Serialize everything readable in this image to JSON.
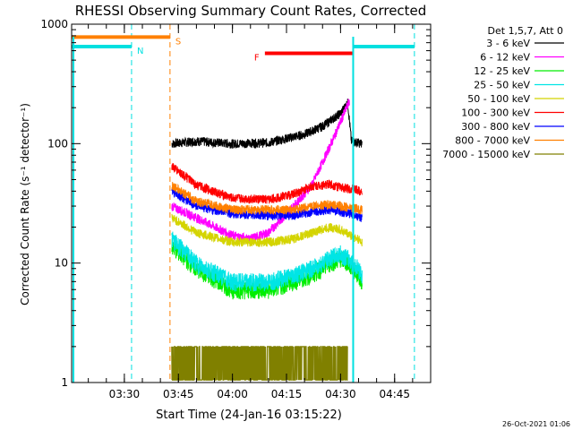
{
  "chart_data": {
    "type": "line",
    "title": "RHESSI Observing Summary Count Rates, Corrected",
    "xlabel": "Start Time (24-Jan-16 03:15:22)",
    "ylabel": "Corrected Count Rate (s⁻¹ detector⁻¹)",
    "yscale": "log",
    "ylim": [
      1,
      1000
    ],
    "xlim": [
      "03:15:22",
      "04:55:00"
    ],
    "x_ticks": [
      "03:30",
      "03:45",
      "04:00",
      "04:15",
      "04:30",
      "04:45"
    ],
    "y_ticks": [
      "1",
      "10",
      "100",
      "1000"
    ],
    "legend_title": "Det 1,5,7, Att 0",
    "legend_position": "right",
    "timestamp": "26-Oct-2021 01:06",
    "flag_bars": [
      {
        "label": "N",
        "color": "#00e0e0",
        "level": 650,
        "segments": [
          [
            "03:15:22",
            "03:32:00"
          ],
          [
            "04:33:30",
            "04:50:30"
          ]
        ],
        "markers": [
          "03:32:00",
          "04:50:30"
        ]
      },
      {
        "label": "S",
        "color": "#ff8000",
        "level": 780,
        "segments": [
          [
            "03:15:22",
            "03:42:40"
          ]
        ],
        "markers": [
          "03:42:40"
        ]
      },
      {
        "label": "F",
        "color": "#ff0000",
        "level": 570,
        "segments": [
          [
            "04:09:00",
            "04:33:30"
          ]
        ],
        "markers": []
      }
    ],
    "series": [
      {
        "name": "3 - 6 keV",
        "color": "#000000",
        "x": [
          "03:43:10",
          "03:50:00",
          "04:00:00",
          "04:10:00",
          "04:20:00",
          "04:25:00",
          "04:30:00",
          "04:32:00",
          "04:33:00",
          "04:36:00"
        ],
        "values": [
          100,
          105,
          100,
          102,
          120,
          140,
          180,
          220,
          105,
          100
        ]
      },
      {
        "name": "6 - 12 keV",
        "color": "#ff00ff",
        "x": [
          "03:43:10",
          "03:50:00",
          "04:00:00",
          "04:05:00",
          "04:10:00",
          "04:17:00",
          "04:22:00",
          "04:25:00",
          "04:28:00",
          "04:31:00",
          "04:32:30"
        ],
        "values": [
          30,
          24,
          17,
          16,
          18,
          30,
          45,
          70,
          110,
          180,
          230
        ]
      },
      {
        "name": "12 - 25 keV",
        "color": "#00ee00",
        "x": [
          "03:43:10",
          "03:50:00",
          "04:00:00",
          "04:10:00",
          "04:17:00",
          "04:22:00",
          "04:27:00",
          "04:30:00",
          "04:32:00",
          "04:35:00",
          "04:36:00"
        ],
        "values": [
          14,
          9,
          6,
          6,
          7,
          8,
          10,
          11,
          10,
          8,
          7
        ]
      },
      {
        "name": "25 - 50 keV",
        "color": "#00e5e5",
        "x": [
          "03:43:10",
          "03:50:00",
          "04:00:00",
          "04:10:00",
          "04:17:00",
          "04:22:00",
          "04:27:00",
          "04:30:00",
          "04:32:00",
          "04:35:00",
          "04:36:00"
        ],
        "values": [
          16,
          10,
          7,
          7,
          8,
          9,
          11,
          12,
          11,
          9,
          8
        ]
      },
      {
        "name": "50 - 100 keV",
        "color": "#d4d400",
        "x": [
          "03:43:10",
          "03:50:00",
          "04:00:00",
          "04:10:00",
          "04:17:00",
          "04:22:00",
          "04:27:00",
          "04:30:00",
          "04:33:00",
          "04:36:00"
        ],
        "values": [
          24,
          18,
          15,
          15,
          16,
          18,
          20,
          19,
          17,
          15
        ]
      },
      {
        "name": "100 - 300 keV",
        "color": "#ff0000",
        "x": [
          "03:43:10",
          "03:50:00",
          "04:00:00",
          "04:10:00",
          "04:17:00",
          "04:22:00",
          "04:27:00",
          "04:30:00",
          "04:33:00",
          "04:36:00"
        ],
        "values": [
          65,
          45,
          35,
          34,
          38,
          44,
          46,
          43,
          42,
          40
        ]
      },
      {
        "name": "300 - 800 keV",
        "color": "#0000ff",
        "x": [
          "03:43:10",
          "03:50:00",
          "04:00:00",
          "04:10:00",
          "04:17:00",
          "04:22:00",
          "04:27:00",
          "04:30:00",
          "04:33:00",
          "04:36:00"
        ],
        "values": [
          40,
          30,
          26,
          25,
          25,
          27,
          28,
          27,
          26,
          24
        ]
      },
      {
        "name": "800 - 7000 keV",
        "color": "#ff8000",
        "x": [
          "03:43:10",
          "03:50:00",
          "04:00:00",
          "04:10:00",
          "04:17:00",
          "04:22:00",
          "04:27:00",
          "04:30:00",
          "04:33:00",
          "04:36:00"
        ],
        "values": [
          45,
          33,
          28,
          28,
          28,
          30,
          31,
          30,
          29,
          28
        ]
      },
      {
        "name": "7000 - 15000 keV",
        "color": "#808000",
        "x": [
          "03:43:10",
          "03:44:30",
          "03:45:00",
          "04:20:00",
          "04:25:00",
          "04:30:00",
          "04:32:00"
        ],
        "values": [
          2,
          2,
          1.7,
          2,
          2,
          2,
          1.8
        ]
      }
    ]
  }
}
